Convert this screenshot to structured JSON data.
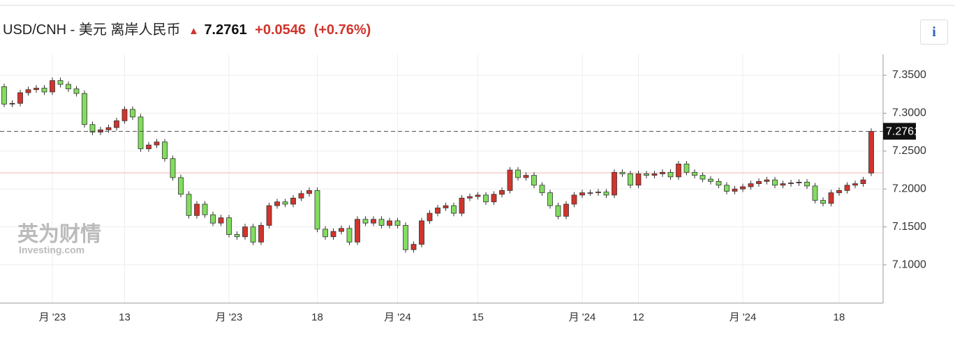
{
  "header": {
    "title": "USD/CNH - 美元 离岸人民币",
    "price": "7.2761",
    "change": "+0.0546",
    "change_pct": "(+0.76%)",
    "info": "i",
    "watermark_cn": "英为财情",
    "watermark_en": "Investing.com"
  },
  "chart_data": {
    "type": "candlestick",
    "categories": [
      null,
      null,
      null,
      null,
      null,
      null,
      "月 '23",
      null,
      null,
      null,
      null,
      null,
      null,
      null,
      null,
      "13",
      null,
      null,
      null,
      null,
      null,
      null,
      null,
      null,
      null,
      null,
      null,
      null,
      "月 '23",
      null,
      null,
      null,
      null,
      null,
      null,
      null,
      null,
      null,
      null,
      "18",
      null,
      null,
      null,
      null,
      null,
      null,
      null,
      null,
      null,
      "月 '24",
      null,
      null,
      null,
      null,
      null,
      null,
      null,
      null,
      null,
      "15",
      null,
      null,
      null,
      null,
      null,
      null,
      null,
      null,
      null,
      null,
      null,
      null,
      "月 '24",
      null,
      null,
      null,
      null,
      null,
      null,
      "12",
      null,
      null,
      null,
      null,
      null,
      null,
      null,
      null,
      null,
      null,
      null,
      null,
      "月 '24",
      null,
      null,
      null,
      null,
      null,
      null,
      null,
      null,
      null,
      null,
      null,
      "18",
      null,
      null,
      null,
      null
    ],
    "open": [
      7.335,
      7.312,
      7.313,
      7.327,
      7.331,
      7.333,
      7.328,
      7.343,
      7.338,
      7.332,
      7.326,
      7.285,
      7.275,
      7.278,
      7.281,
      7.29,
      7.305,
      7.295,
      7.253,
      7.258,
      7.262,
      7.24,
      7.215,
      7.193,
      7.165,
      7.18,
      7.166,
      7.155,
      7.162,
      7.14,
      7.137,
      7.15,
      7.13,
      7.152,
      7.178,
      7.183,
      7.18,
      7.188,
      7.194,
      7.198,
      7.147,
      7.137,
      7.144,
      7.148,
      7.13,
      7.16,
      7.155,
      7.16,
      7.152,
      7.158,
      7.152,
      7.12,
      7.127,
      7.158,
      7.168,
      7.175,
      7.178,
      7.168,
      7.188,
      7.19,
      7.192,
      7.183,
      7.193,
      7.198,
      7.225,
      7.215,
      7.218,
      7.205,
      7.195,
      7.178,
      7.164,
      7.18,
      7.192,
      7.195,
      7.195,
      7.196,
      7.192,
      7.222,
      7.22,
      7.205,
      7.22,
      7.218,
      7.22,
      7.222,
      7.216,
      7.233,
      7.222,
      7.218,
      7.213,
      7.21,
      7.205,
      7.197,
      7.2,
      7.203,
      7.207,
      7.21,
      7.212,
      7.205,
      7.207,
      7.208,
      7.209,
      7.204,
      7.185,
      7.181,
      7.195,
      7.198,
      7.205,
      7.207,
      7.221
    ],
    "high": [
      7.339,
      7.317,
      7.331,
      7.335,
      7.337,
      7.337,
      7.347,
      7.347,
      7.342,
      7.336,
      7.33,
      7.289,
      7.282,
      7.285,
      7.294,
      7.309,
      7.309,
      7.299,
      7.262,
      7.266,
      7.266,
      7.244,
      7.219,
      7.197,
      7.184,
      7.184,
      7.17,
      7.166,
      7.166,
      7.144,
      7.154,
      7.154,
      7.156,
      7.182,
      7.187,
      7.187,
      7.192,
      7.198,
      7.202,
      7.202,
      7.151,
      7.148,
      7.152,
      7.152,
      7.164,
      7.164,
      7.164,
      7.164,
      7.162,
      7.162,
      7.156,
      7.131,
      7.162,
      7.172,
      7.179,
      7.182,
      7.182,
      7.192,
      7.194,
      7.196,
      7.196,
      7.197,
      7.202,
      7.229,
      7.229,
      7.222,
      7.222,
      7.209,
      7.199,
      7.182,
      7.184,
      7.196,
      7.199,
      7.199,
      7.2,
      7.2,
      7.226,
      7.226,
      7.224,
      7.224,
      7.224,
      7.224,
      7.226,
      7.226,
      7.237,
      7.237,
      7.226,
      7.222,
      7.217,
      7.214,
      7.209,
      7.204,
      7.207,
      7.211,
      7.214,
      7.216,
      7.216,
      7.211,
      7.212,
      7.213,
      7.213,
      7.208,
      7.189,
      7.199,
      7.202,
      7.209,
      7.211,
      7.216,
      7.28
    ],
    "low": [
      7.308,
      7.308,
      7.309,
      7.323,
      7.327,
      7.324,
      7.324,
      7.334,
      7.328,
      7.322,
      7.281,
      7.271,
      7.271,
      7.274,
      7.277,
      7.286,
      7.291,
      7.249,
      7.249,
      7.254,
      7.236,
      7.211,
      7.189,
      7.161,
      7.161,
      7.162,
      7.151,
      7.151,
      7.136,
      7.133,
      7.133,
      7.126,
      7.126,
      7.148,
      7.174,
      7.176,
      7.176,
      7.184,
      7.19,
      7.143,
      7.133,
      7.133,
      7.14,
      7.126,
      7.126,
      7.151,
      7.151,
      7.148,
      7.148,
      7.148,
      7.116,
      7.116,
      7.123,
      7.154,
      7.164,
      7.171,
      7.164,
      7.164,
      7.184,
      7.186,
      7.179,
      7.179,
      7.189,
      7.194,
      7.211,
      7.211,
      7.201,
      7.191,
      7.174,
      7.16,
      7.16,
      7.176,
      7.188,
      7.191,
      7.191,
      7.188,
      7.188,
      7.216,
      7.201,
      7.201,
      7.214,
      7.214,
      7.216,
      7.212,
      7.212,
      7.218,
      7.214,
      7.209,
      7.206,
      7.201,
      7.193,
      7.193,
      7.196,
      7.199,
      7.203,
      7.206,
      7.201,
      7.201,
      7.203,
      7.204,
      7.2,
      7.181,
      7.177,
      7.177,
      7.191,
      7.194,
      7.201,
      7.203,
      7.217
    ],
    "close": [
      7.312,
      7.313,
      7.327,
      7.331,
      7.333,
      7.328,
      7.343,
      7.338,
      7.332,
      7.326,
      7.285,
      7.275,
      7.278,
      7.281,
      7.29,
      7.305,
      7.295,
      7.253,
      7.258,
      7.262,
      7.24,
      7.215,
      7.193,
      7.165,
      7.18,
      7.166,
      7.155,
      7.162,
      7.14,
      7.137,
      7.15,
      7.13,
      7.152,
      7.178,
      7.183,
      7.18,
      7.188,
      7.194,
      7.198,
      7.147,
      7.137,
      7.144,
      7.148,
      7.13,
      7.16,
      7.155,
      7.16,
      7.152,
      7.158,
      7.152,
      7.12,
      7.127,
      7.158,
      7.168,
      7.175,
      7.178,
      7.168,
      7.188,
      7.19,
      7.192,
      7.183,
      7.193,
      7.198,
      7.225,
      7.215,
      7.218,
      7.205,
      7.195,
      7.178,
      7.164,
      7.18,
      7.192,
      7.195,
      7.195,
      7.196,
      7.192,
      7.222,
      7.22,
      7.205,
      7.22,
      7.218,
      7.22,
      7.222,
      7.216,
      7.233,
      7.222,
      7.218,
      7.213,
      7.21,
      7.205,
      7.197,
      7.2,
      7.203,
      7.207,
      7.21,
      7.212,
      7.205,
      7.207,
      7.208,
      7.209,
      7.204,
      7.185,
      7.181,
      7.195,
      7.198,
      7.205,
      7.207,
      7.212,
      7.2761
    ],
    "up_color": "#d0342c",
    "down_color": "#82dd5f",
    "current_price": 7.2761,
    "reference_line": 7.2213,
    "ylim": [
      7.0495,
      7.3776
    ],
    "yticks": [
      {
        "value": 7.1,
        "label": "7.1000"
      },
      {
        "value": 7.15,
        "label": "7.1500"
      },
      {
        "value": 7.2,
        "label": "7.2000"
      },
      {
        "value": 7.25,
        "label": "7.2500"
      },
      {
        "value": 7.3,
        "label": "7.3000"
      },
      {
        "value": 7.35,
        "label": "7.3500"
      }
    ],
    "grid": true
  }
}
